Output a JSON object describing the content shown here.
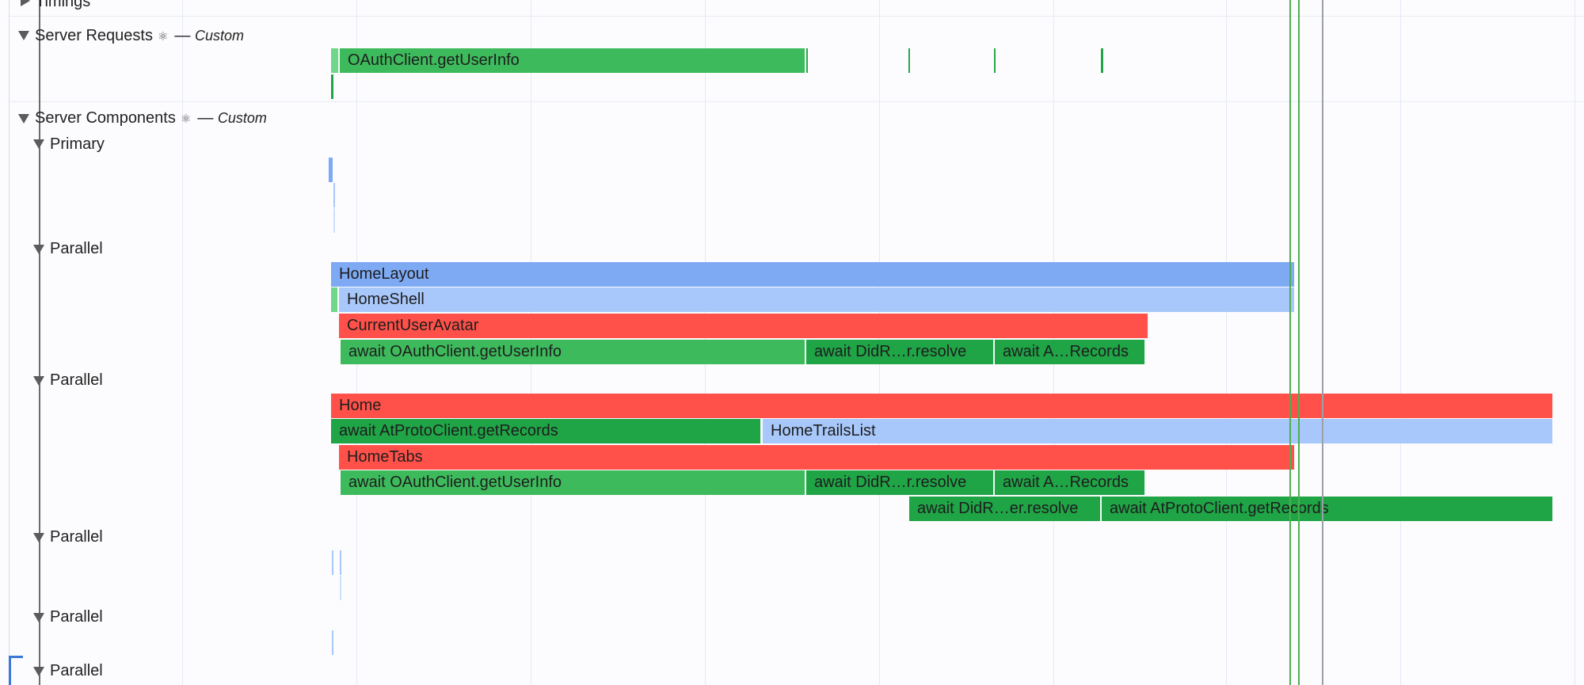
{
  "colors": {
    "green": "#3dbb5c",
    "green_dark": "#1fa446",
    "blue": "#7ea9f3",
    "blue_light": "#a8c7fa",
    "red": "#ff5149",
    "grid": "#e4e9f6",
    "tree": "#6b6b6b",
    "marker_green": "#4caf50",
    "marker_gray": "#9aa0a6",
    "selection": "#3d78d8"
  },
  "tracks": {
    "timings": {
      "label": "Timings",
      "icon": "triangle-right-icon"
    },
    "server_requests": {
      "label": "Server Requests",
      "react_icon": "⚛",
      "separator": "—",
      "tag": "Custom",
      "icon": "triangle-down-icon"
    },
    "server_components": {
      "label": "Server Components",
      "react_icon": "⚛",
      "separator": "—",
      "tag": "Custom",
      "icon": "triangle-down-icon"
    },
    "primary": {
      "label": "Primary"
    },
    "parallel_1": {
      "label": "Parallel"
    },
    "parallel_2": {
      "label": "Parallel"
    },
    "parallel_3": {
      "label": "Parallel"
    },
    "parallel_4": {
      "label": "Parallel"
    },
    "parallel_5": {
      "label": "Parallel"
    }
  },
  "events": {
    "req_oauth": "OAuthClient.getUserInfo",
    "home_layout": "HomeLayout",
    "home_shell": "HomeShell",
    "current_user_avatar": "CurrentUserAvatar",
    "p1_await_oauth": "await OAuthClient.getUserInfo",
    "p1_await_didr": "await DidR…r.resolve",
    "p1_await_a": "await A…Records",
    "home": "Home",
    "home_await_atproto": "await AtProtoClient.getRecords",
    "home_trails_list": "HomeTrailsList",
    "home_tabs": "HomeTabs",
    "p2_await_oauth": "await OAuthClient.getUserInfo",
    "p2_await_didr": "await DidR…r.resolve",
    "p2_await_a": "await A…Records",
    "p2_await_didr2": "await DidR…er.resolve",
    "p2_await_atproto": "await AtProtoClient.getRecords"
  }
}
